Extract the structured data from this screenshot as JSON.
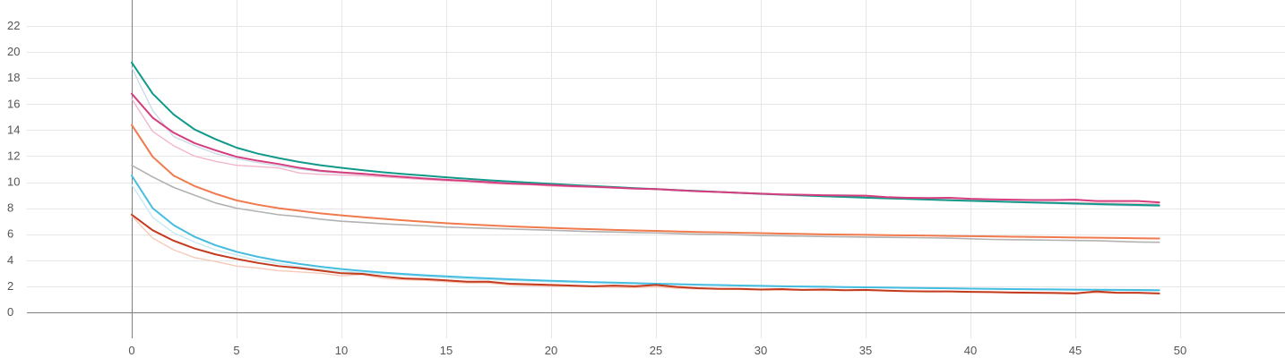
{
  "chart_data": {
    "type": "line",
    "title": "",
    "xlabel": "",
    "ylabel": "",
    "xlim": [
      -5,
      55
    ],
    "ylim": [
      -2,
      24
    ],
    "x_ticks": [
      0,
      5,
      10,
      15,
      20,
      25,
      30,
      35,
      40,
      45,
      50
    ],
    "y_ticks": [
      0,
      2,
      4,
      6,
      8,
      10,
      12,
      14,
      16,
      18,
      20,
      22
    ],
    "x_tick_labels": [
      "0",
      "5",
      "10",
      "15",
      "20",
      "25",
      "30",
      "35",
      "40",
      "45",
      "50"
    ],
    "y_tick_labels": [
      "0",
      "2",
      "4",
      "6",
      "8",
      "10",
      "12",
      "14",
      "16",
      "18",
      "20",
      "22"
    ],
    "grid": true,
    "legend": "none",
    "x": [
      0,
      1,
      2,
      3,
      4,
      5,
      6,
      7,
      8,
      9,
      10,
      11,
      12,
      13,
      14,
      15,
      16,
      17,
      18,
      19,
      20,
      21,
      22,
      23,
      24,
      25,
      26,
      27,
      28,
      29,
      30,
      31,
      32,
      33,
      34,
      35,
      36,
      37,
      38,
      39,
      40,
      41,
      42,
      43,
      44,
      45,
      46,
      47,
      48,
      49
    ],
    "series": [
      {
        "color": "#b2b2b2",
        "width": 1.6,
        "values": [
          11.3,
          10.4,
          9.6,
          9.0,
          8.4,
          8.0,
          7.75,
          7.5,
          7.35,
          7.15,
          7.0,
          6.9,
          6.8,
          6.72,
          6.65,
          6.55,
          6.5,
          6.45,
          6.4,
          6.35,
          6.3,
          6.25,
          6.2,
          6.17,
          6.13,
          6.1,
          6.05,
          6.0,
          5.98,
          5.95,
          5.9,
          5.88,
          5.85,
          5.82,
          5.8,
          5.78,
          5.76,
          5.74,
          5.72,
          5.7,
          5.65,
          5.6,
          5.58,
          5.56,
          5.54,
          5.52,
          5.5,
          5.45,
          5.4,
          5.38
        ]
      },
      {
        "color": "#f7c9b9",
        "width": 1.4,
        "values": [
          7.4,
          5.7,
          4.8,
          4.2,
          3.9,
          3.55,
          3.4,
          3.2,
          3.1,
          3.0,
          2.8,
          2.9,
          2.6,
          2.5,
          2.45,
          2.35,
          2.25,
          2.25,
          2.1,
          2.05,
          2.0,
          1.98,
          1.95,
          1.92,
          1.9,
          1.95,
          1.85,
          1.8,
          1.8,
          1.75,
          1.72,
          1.7,
          1.7,
          1.68,
          1.68,
          1.67,
          1.65,
          1.63,
          1.62,
          1.6,
          1.58,
          1.57,
          1.55,
          1.54,
          1.52,
          1.51,
          1.5,
          1.49,
          1.48,
          1.47
        ]
      },
      {
        "color": "#f2b6cc",
        "width": 1.4,
        "values": [
          16.4,
          13.9,
          12.8,
          12.0,
          11.6,
          11.3,
          11.2,
          11.1,
          10.7,
          10.6,
          10.55,
          10.5,
          10.4,
          10.3,
          10.2,
          10.1,
          10.05,
          9.9,
          9.85,
          9.8,
          9.7,
          9.65,
          9.6,
          9.55,
          9.5,
          9.45,
          9.35,
          9.3,
          9.25,
          9.2,
          9.1,
          9.05,
          9.0,
          8.95,
          8.9,
          8.85,
          8.8,
          8.75,
          8.7,
          8.65,
          8.6,
          8.55,
          8.5,
          8.48,
          8.45,
          8.42,
          8.4,
          8.38,
          8.35,
          8.32
        ]
      },
      {
        "color": "#ccdbe8",
        "width": 1.4,
        "values": [
          18.8,
          15.5,
          13.5,
          12.8,
          12.2,
          11.8,
          11.5,
          11.25,
          11.0,
          10.8,
          10.7,
          10.6,
          10.5,
          10.4,
          10.3,
          10.2,
          10.1,
          10.0,
          9.9,
          9.85,
          9.8,
          9.7,
          9.6,
          9.55,
          9.5,
          9.45,
          9.35,
          9.3,
          9.25,
          9.15,
          9.05,
          9.0,
          8.95,
          8.9,
          8.85,
          8.8,
          8.75,
          8.7,
          8.65,
          8.6,
          8.55,
          8.5,
          8.45,
          8.4,
          8.35,
          8.3,
          8.25,
          8.2,
          8.18,
          8.15
        ]
      },
      {
        "color": "#c7eaf3",
        "width": 1.4,
        "values": [
          9.8,
          7.3,
          6.1,
          5.4,
          4.8,
          4.4,
          4.0,
          3.75,
          3.5,
          3.3,
          3.15,
          3.05,
          2.95,
          2.85,
          2.75,
          2.65,
          2.55,
          2.5,
          2.45,
          2.4,
          2.35,
          2.3,
          2.27,
          2.23,
          2.2,
          2.17,
          2.13,
          2.1,
          2.07,
          2.03,
          2.0,
          1.98,
          1.96,
          1.94,
          1.92,
          1.9,
          1.88,
          1.86,
          1.84,
          1.82,
          1.8,
          1.78,
          1.76,
          1.74,
          1.72,
          1.7,
          1.69,
          1.68,
          1.66,
          1.65
        ]
      },
      {
        "color": "#11998a",
        "width": 2.0,
        "values": [
          19.2,
          16.8,
          15.2,
          14.05,
          13.3,
          12.65,
          12.2,
          11.85,
          11.55,
          11.3,
          11.1,
          10.92,
          10.76,
          10.62,
          10.5,
          10.37,
          10.26,
          10.15,
          10.05,
          9.96,
          9.87,
          9.78,
          9.7,
          9.62,
          9.54,
          9.47,
          9.39,
          9.32,
          9.25,
          9.18,
          9.11,
          9.05,
          8.98,
          8.92,
          8.87,
          8.81,
          8.76,
          8.71,
          8.66,
          8.61,
          8.57,
          8.52,
          8.48,
          8.44,
          8.4,
          8.36,
          8.32,
          8.28,
          8.25,
          8.21
        ]
      },
      {
        "color": "#d63d7e",
        "width": 2.0,
        "values": [
          16.8,
          14.95,
          13.8,
          13.0,
          12.45,
          11.95,
          11.65,
          11.4,
          11.1,
          10.88,
          10.75,
          10.65,
          10.52,
          10.4,
          10.28,
          10.18,
          10.1,
          10.0,
          9.9,
          9.85,
          9.78,
          9.7,
          9.65,
          9.58,
          9.5,
          9.47,
          9.38,
          9.3,
          9.25,
          9.18,
          9.12,
          9.06,
          9.03,
          9.0,
          8.98,
          8.96,
          8.85,
          8.8,
          8.78,
          8.8,
          8.72,
          8.68,
          8.65,
          8.63,
          8.63,
          8.65,
          8.55,
          8.55,
          8.55,
          8.45
        ]
      },
      {
        "color": "#f07a4e",
        "width": 2.0,
        "values": [
          14.4,
          11.95,
          10.5,
          9.7,
          9.1,
          8.6,
          8.27,
          8.0,
          7.8,
          7.6,
          7.45,
          7.31,
          7.18,
          7.06,
          6.95,
          6.85,
          6.76,
          6.68,
          6.61,
          6.55,
          6.49,
          6.43,
          6.38,
          6.33,
          6.29,
          6.25,
          6.21,
          6.17,
          6.14,
          6.11,
          6.08,
          6.05,
          6.02,
          5.99,
          5.97,
          5.95,
          5.93,
          5.91,
          5.89,
          5.87,
          5.85,
          5.83,
          5.81,
          5.79,
          5.77,
          5.75,
          5.73,
          5.71,
          5.69,
          5.67
        ]
      },
      {
        "color": "#45bde0",
        "width": 2.0,
        "values": [
          10.5,
          8.0,
          6.7,
          5.8,
          5.15,
          4.65,
          4.27,
          3.97,
          3.72,
          3.5,
          3.32,
          3.18,
          3.05,
          2.94,
          2.84,
          2.76,
          2.68,
          2.61,
          2.54,
          2.48,
          2.42,
          2.37,
          2.32,
          2.28,
          2.24,
          2.2,
          2.16,
          2.12,
          2.09,
          2.06,
          2.03,
          2.0,
          1.98,
          1.96,
          1.94,
          1.92,
          1.9,
          1.88,
          1.86,
          1.84,
          1.82,
          1.8,
          1.78,
          1.77,
          1.76,
          1.74,
          1.73,
          1.72,
          1.71,
          1.7
        ]
      },
      {
        "color": "#c43a1d",
        "width": 2.0,
        "values": [
          7.5,
          6.3,
          5.5,
          4.9,
          4.45,
          4.1,
          3.8,
          3.55,
          3.4,
          3.2,
          3.0,
          2.95,
          2.75,
          2.6,
          2.55,
          2.45,
          2.35,
          2.35,
          2.2,
          2.15,
          2.1,
          2.05,
          2.0,
          2.05,
          2.0,
          2.1,
          1.95,
          1.85,
          1.8,
          1.8,
          1.75,
          1.78,
          1.72,
          1.75,
          1.7,
          1.72,
          1.66,
          1.62,
          1.6,
          1.6,
          1.57,
          1.55,
          1.52,
          1.5,
          1.48,
          1.45,
          1.6,
          1.5,
          1.5,
          1.45
        ]
      }
    ]
  }
}
